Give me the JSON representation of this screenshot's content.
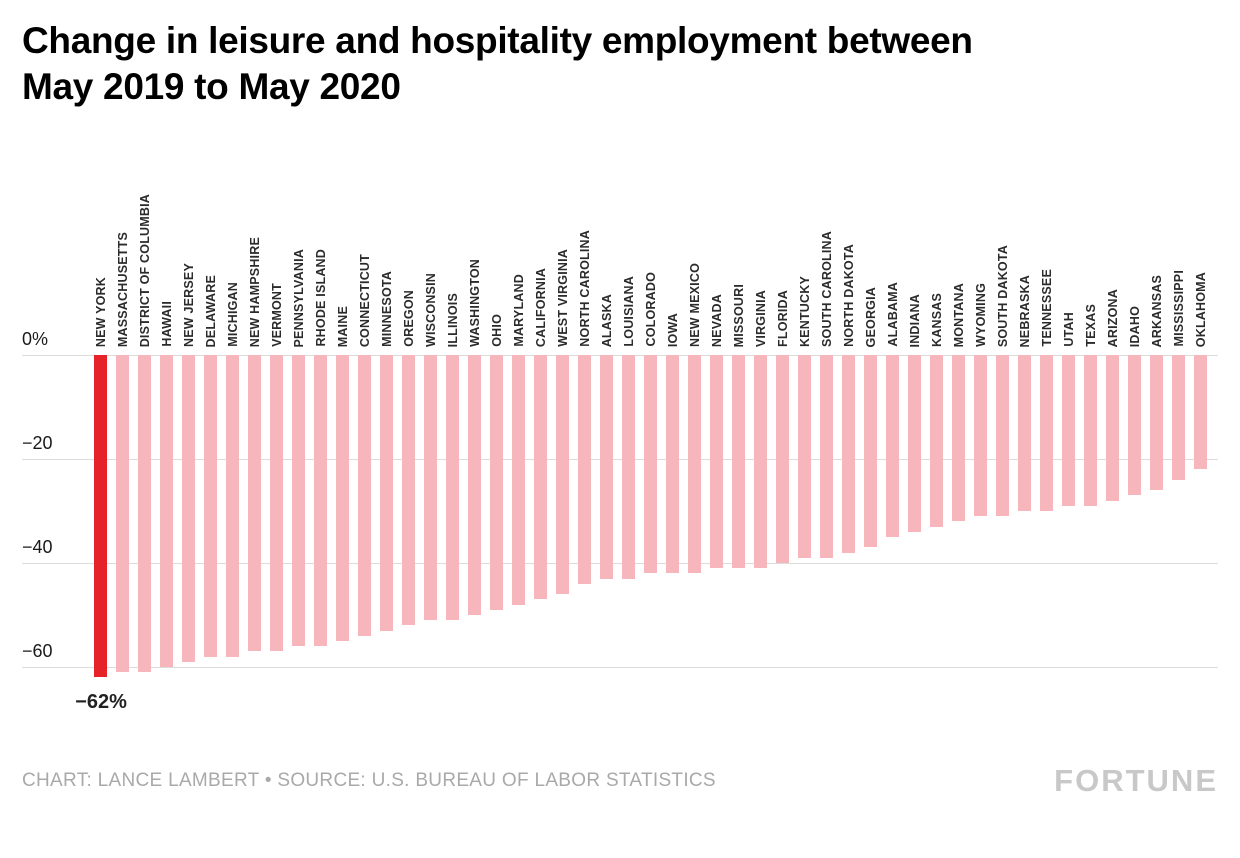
{
  "title": {
    "line1": "Change in leisure and hospitality employment between",
    "line2": "May 2019 to May 2020"
  },
  "chart_data": {
    "type": "bar",
    "title": "Change in leisure and hospitality employment between May 2019 to May 2020",
    "categories": [
      "NEW YORK",
      "MASSACHUSETTS",
      "DISTRICT OF COLUMBIA",
      "HAWAII",
      "NEW JERSEY",
      "DELAWARE",
      "MICHIGAN",
      "NEW HAMPSHIRE",
      "VERMONT",
      "PENNSYLVANIA",
      "RHODE ISLAND",
      "MAINE",
      "CONNECTICUT",
      "MINNESOTA",
      "OREGON",
      "WISCONSIN",
      "ILLINOIS",
      "WASHINGTON",
      "OHIO",
      "MARYLAND",
      "CALIFORNIA",
      "WEST VIRGINIA",
      "NORTH CAROLINA",
      "ALASKA",
      "LOUISIANA",
      "COLORADO",
      "IOWA",
      "NEW MEXICO",
      "NEVADA",
      "MISSOURI",
      "VIRGINIA",
      "FLORIDA",
      "KENTUCKY",
      "SOUTH CAROLINA",
      "NORTH DAKOTA",
      "GEORGIA",
      "ALABAMA",
      "INDIANA",
      "KANSAS",
      "MONTANA",
      "WYOMING",
      "SOUTH DAKOTA",
      "NEBRASKA",
      "TENNESSEE",
      "UTAH",
      "TEXAS",
      "ARIZONA",
      "IDAHO",
      "ARKANSAS",
      "MISSISSIPPI",
      "OKLAHOMA"
    ],
    "values": [
      -62,
      -61,
      -61,
      -60,
      -59,
      -58,
      -58,
      -57,
      -57,
      -56,
      -56,
      -55,
      -54,
      -53,
      -52,
      -51,
      -51,
      -50,
      -49,
      -48,
      -47,
      -46,
      -44,
      -43,
      -43,
      -42,
      -42,
      -42,
      -41,
      -41,
      -41,
      -40,
      -39,
      -39,
      -38,
      -37,
      -35,
      -34,
      -33,
      -32,
      -31,
      -31,
      -30,
      -30,
      -29,
      -29,
      -28,
      -27,
      -26,
      -24,
      -22
    ],
    "ylim": [
      -66,
      0
    ],
    "yticks": [
      0,
      -20,
      -40,
      -60
    ],
    "ytick_labels": [
      "0%",
      "−20",
      "−40",
      "−60"
    ],
    "grid": true,
    "legend": "none",
    "bar_color": "#F7B6BC",
    "highlight_index": 0,
    "highlight_color": "#E62329",
    "highlight_label": "−62%"
  },
  "footer": {
    "credit": "CHART: LANCE LAMBERT • SOURCE: U.S. BUREAU OF LABOR STATISTICS",
    "brand": "FORTUNE"
  }
}
